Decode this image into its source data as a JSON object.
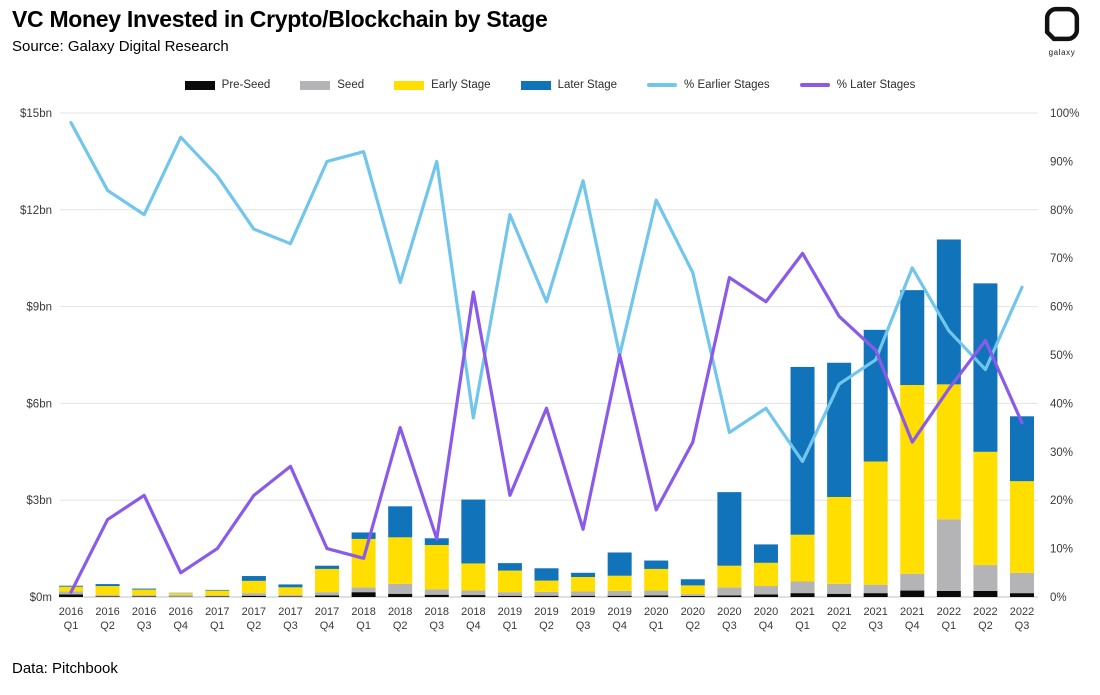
{
  "header": {
    "title": "VC Money Invested in Crypto/Blockchain by Stage",
    "source": "Source: Galaxy Digital Research",
    "logo_text": "galaxy"
  },
  "footer": {
    "data_source": "Data: Pitchbook"
  },
  "colors": {
    "pre_seed": "#0a0a0a",
    "seed": "#b4b4b6",
    "early_stage": "#ffde00",
    "later_stage": "#1173b9",
    "pct_earlier": "#72c6ec",
    "pct_later": "#8a5be8",
    "gridline": "#e3e3e3",
    "baseline": "#d5d5d5",
    "axis_text": "#3a3a3a"
  },
  "legend": [
    {
      "label": "Pre-Seed",
      "type": "bar",
      "color": "#0a0a0a"
    },
    {
      "label": "Seed",
      "type": "bar",
      "color": "#b4b4b6"
    },
    {
      "label": "Early Stage",
      "type": "bar",
      "color": "#ffde00"
    },
    {
      "label": "Later Stage",
      "type": "bar",
      "color": "#1173b9"
    },
    {
      "label": "% Earlier Stages",
      "type": "line",
      "color": "#72c6ec"
    },
    {
      "label": "% Later Stages",
      "type": "line",
      "color": "#8a5be8"
    }
  ],
  "chart_data": {
    "type": "combo-stacked-bar-line",
    "title": "VC Money Invested in Crypto/Blockchain by Stage",
    "categories": [
      "2016 Q1",
      "2016 Q2",
      "2016 Q3",
      "2016 Q4",
      "2017 Q1",
      "2017 Q2",
      "2017 Q3",
      "2017 Q4",
      "2018 Q1",
      "2018 Q2",
      "2018 Q3",
      "2018 Q4",
      "2019 Q1",
      "2019 Q2",
      "2019 Q3",
      "2019 Q4",
      "2020 Q1",
      "2020 Q2",
      "2020 Q3",
      "2020 Q4",
      "2021 Q1",
      "2021 Q2",
      "2021 Q3",
      "2021 Q4",
      "2022 Q1",
      "2022 Q2",
      "2022 Q3"
    ],
    "bar_unit": "$bn",
    "series": [
      {
        "name": "Pre-Seed",
        "type": "bar",
        "axis": "left",
        "color": "#0a0a0a",
        "values": [
          0.08,
          0.02,
          0.02,
          0.01,
          0.02,
          0.04,
          0.02,
          0.05,
          0.15,
          0.1,
          0.07,
          0.06,
          0.04,
          0.04,
          0.04,
          0.04,
          0.05,
          0.03,
          0.05,
          0.08,
          0.12,
          0.1,
          0.12,
          0.2,
          0.19,
          0.19,
          0.12
        ]
      },
      {
        "name": "Seed",
        "type": "bar",
        "axis": "left",
        "color": "#b4b4b6",
        "values": [
          0.09,
          0.04,
          0.04,
          0.05,
          0.03,
          0.08,
          0.04,
          0.1,
          0.15,
          0.31,
          0.17,
          0.14,
          0.11,
          0.12,
          0.13,
          0.15,
          0.15,
          0.06,
          0.25,
          0.26,
          0.36,
          0.31,
          0.26,
          0.52,
          2.22,
          0.8,
          0.63
        ]
      },
      {
        "name": "Early Stage",
        "type": "bar",
        "axis": "left",
        "color": "#ffde00",
        "values": [
          0.15,
          0.28,
          0.17,
          0.06,
          0.15,
          0.38,
          0.24,
          0.72,
          1.5,
          1.44,
          1.37,
          0.84,
          0.67,
          0.35,
          0.45,
          0.47,
          0.67,
          0.27,
          0.67,
          0.72,
          1.45,
          2.69,
          3.82,
          5.85,
          4.18,
          3.51,
          2.84
        ]
      },
      {
        "name": "Later Stage",
        "type": "bar",
        "axis": "left",
        "color": "#1173b9",
        "values": [
          0.03,
          0.06,
          0.03,
          0.01,
          0.02,
          0.15,
          0.09,
          0.1,
          0.2,
          0.96,
          0.21,
          1.98,
          0.23,
          0.38,
          0.13,
          0.72,
          0.26,
          0.19,
          2.28,
          0.57,
          5.2,
          4.16,
          4.08,
          2.94,
          4.49,
          5.22,
          2.01
        ]
      },
      {
        "name": "% Earlier Stages",
        "type": "line",
        "axis": "right",
        "color": "#72c6ec",
        "values": [
          98,
          84,
          79,
          95,
          87,
          76,
          73,
          90,
          92,
          65,
          90,
          37,
          79,
          61,
          86,
          50,
          82,
          67,
          34,
          39,
          28,
          44,
          49,
          68,
          55,
          47,
          64
        ]
      },
      {
        "name": "% Later Stages",
        "type": "line",
        "axis": "right",
        "color": "#8a5be8",
        "values": [
          1,
          16,
          21,
          5,
          10,
          21,
          27,
          10,
          8,
          35,
          12,
          63,
          21,
          39,
          14,
          50,
          18,
          32,
          66,
          61,
          71,
          58,
          51,
          32,
          43,
          53,
          36
        ]
      }
    ],
    "left_axis": {
      "ticks": [
        "$15bn",
        "$12bn",
        "$9bn",
        "$6bn",
        "$3bn",
        "$0m"
      ],
      "min": 0,
      "max": 15
    },
    "right_axis": {
      "ticks": [
        "100%",
        "90%",
        "80%",
        "70%",
        "60%",
        "50%",
        "40%",
        "30%",
        "20%",
        "10%",
        "0%"
      ],
      "min": 0,
      "max": 100
    },
    "grid": true,
    "legend_position": "top"
  }
}
